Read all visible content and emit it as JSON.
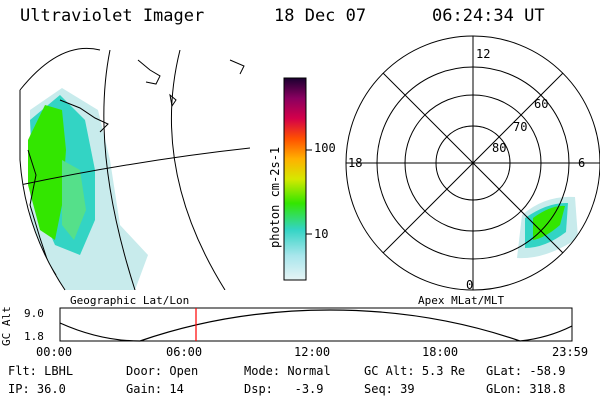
{
  "header": {
    "instrument": "Ultraviolet Imager",
    "date": "18 Dec 07",
    "time": "06:24:34 UT"
  },
  "colorbar": {
    "unit_label": "photon cm-2s-1",
    "ticks": [
      "100",
      "10"
    ],
    "scale": "log"
  },
  "panels": {
    "left_label": "Geographic Lat/Lon",
    "right_label": "Apex MLat/MLT"
  },
  "polar_plot": {
    "mlt_labels": {
      "top": "12",
      "left": "18",
      "right": "6",
      "bottom": "0"
    },
    "lat_labels": [
      "60",
      "70",
      "80"
    ]
  },
  "altitude_plot": {
    "ylabel": "GC Alt",
    "yticks": [
      "9.0",
      "1.8"
    ],
    "xticks": [
      "00:00",
      "06:00",
      "12:00",
      "18:00",
      "23:59"
    ],
    "current_time_marker": "06:24"
  },
  "info": {
    "filter": {
      "label": "Flt:",
      "value": "LBHL"
    },
    "ip": {
      "label": "IP:",
      "value": "36.0"
    },
    "door": {
      "label": "Door:",
      "value": "Open"
    },
    "gain": {
      "label": "Gain:",
      "value": "14"
    },
    "mode": {
      "label": "Mode:",
      "value": "Normal"
    },
    "dsp": {
      "label": "Dsp:",
      "value": "-3.9"
    },
    "gc_alt": {
      "label": "GC Alt:",
      "value": "5.3 Re"
    },
    "seq": {
      "label": "Seq:",
      "value": "39"
    },
    "glat": {
      "label": "GLat:",
      "value": "-58.9"
    },
    "glon": {
      "label": "GLon:",
      "value": "318.8"
    }
  },
  "colors": {
    "aurora_bright": "#33e600",
    "aurora_mid": "#33d4c4",
    "aurora_faint": "#c8ebec",
    "marker": "#ff0000"
  }
}
